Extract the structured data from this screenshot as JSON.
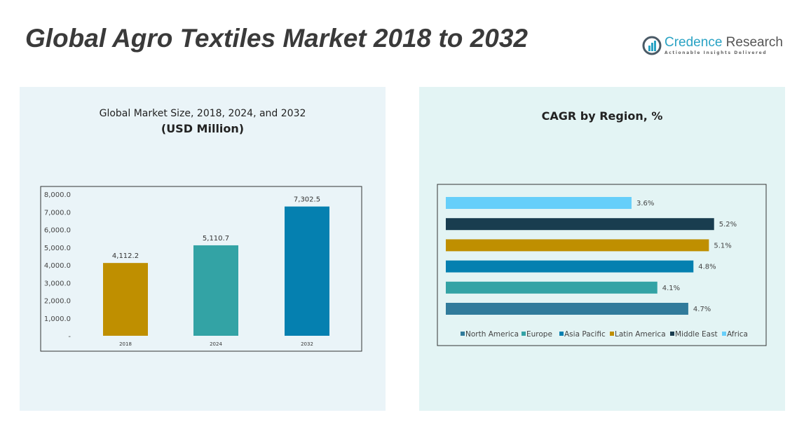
{
  "title": "Global Agro Textiles Market 2018 to 2032",
  "logo": {
    "name1": "Credence",
    "name2": " Research",
    "tagline": "Actionable Insights Delivered"
  },
  "chart_data": [
    {
      "type": "bar",
      "title": "Global Market Size, 2018, 2024, and 2032",
      "subtitle": "(USD Million)",
      "categories": [
        "2018",
        "2024",
        "2032"
      ],
      "values": [
        4112.2,
        5110.7,
        7302.5
      ],
      "labels": [
        "4,112.2",
        "5,110.7",
        "7,302.5"
      ],
      "colors": [
        "#bf8f00",
        "#33a3a5",
        "#0580b0"
      ],
      "ylim": [
        0,
        8000
      ],
      "yticks": [
        "-",
        "1,000.0",
        "2,000.0",
        "3,000.0",
        "4,000.0",
        "5,000.0",
        "6,000.0",
        "7,000.0",
        "8,000.0"
      ]
    },
    {
      "type": "bar",
      "orientation": "horizontal",
      "title": "CAGR by Region, %",
      "categories": [
        "North America",
        "Europe",
        "Asia Pacific",
        "Latin America",
        "Middle East",
        "Africa"
      ],
      "values": [
        4.7,
        4.1,
        4.8,
        5.1,
        5.2,
        3.6
      ],
      "labels": [
        "4.7%",
        "4.1%",
        "4.8%",
        "5.1%",
        "5.2%",
        "3.6%"
      ],
      "colors": [
        "#317b9b",
        "#33a3a5",
        "#0580b0",
        "#bf8f00",
        "#193d4f",
        "#66cffa"
      ],
      "legend": "bottom"
    }
  ]
}
